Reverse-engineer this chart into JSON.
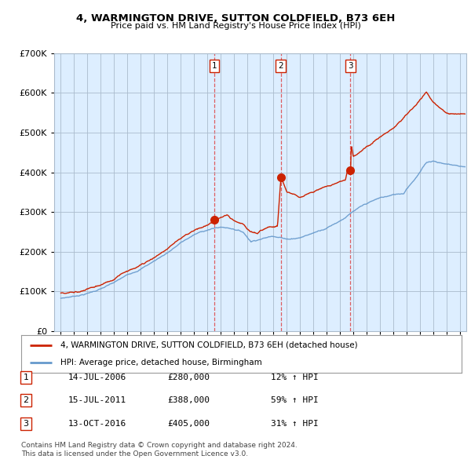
{
  "title": "4, WARMINGTON DRIVE, SUTTON COLDFIELD, B73 6EH",
  "subtitle": "Price paid vs. HM Land Registry's House Price Index (HPI)",
  "legend_line1": "4, WARMINGTON DRIVE, SUTTON COLDFIELD, B73 6EH (detached house)",
  "legend_line2": "HPI: Average price, detached house, Birmingham",
  "footnote1": "Contains HM Land Registry data © Crown copyright and database right 2024.",
  "footnote2": "This data is licensed under the Open Government Licence v3.0.",
  "transactions": [
    {
      "num": "1",
      "date": "14-JUL-2006",
      "price": "£280,000",
      "hpi": "12% ↑ HPI",
      "x": 2006.54
    },
    {
      "num": "2",
      "date": "15-JUL-2011",
      "price": "£388,000",
      "hpi": "59% ↑ HPI",
      "x": 2011.54
    },
    {
      "num": "3",
      "date": "13-OCT-2016",
      "price": "£405,000",
      "hpi": "31% ↑ HPI",
      "x": 2016.79
    }
  ],
  "hpi_color": "#6699cc",
  "price_color": "#cc2200",
  "bg_chart_color": "#ddeeff",
  "background_color": "#ffffff",
  "grid_color": "#aabbcc",
  "ylim": [
    0,
    700000
  ],
  "xlim_start": 1994.5,
  "xlim_end": 2025.5
}
